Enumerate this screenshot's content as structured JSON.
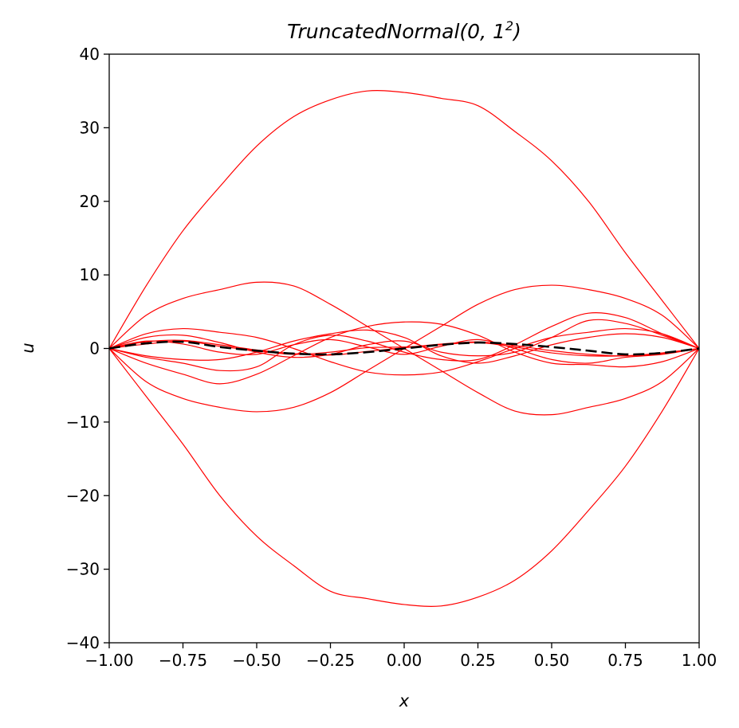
{
  "chart_data": {
    "type": "line",
    "title": "TruncatedNormal(0, 1",
    "title_superscript": "2",
    "title_close": ")",
    "xlabel": "x",
    "ylabel": "u",
    "xlim": [
      -1,
      1
    ],
    "ylim": [
      -40,
      40
    ],
    "xticks": [
      "−1.00",
      "−0.75",
      "−0.50",
      "−0.25",
      "0.00",
      "0.25",
      "0.50",
      "0.75",
      "1.00"
    ],
    "yticks": [
      "−40",
      "−30",
      "−20",
      "−10",
      "0",
      "10",
      "20",
      "30",
      "40"
    ],
    "grid": false,
    "x": [
      -1.0,
      -0.875,
      -0.75,
      -0.625,
      -0.5,
      -0.375,
      -0.25,
      -0.125,
      0.0,
      0.125,
      0.25,
      0.375,
      0.5,
      0.625,
      0.75,
      0.875,
      1.0
    ],
    "series": [
      {
        "color": "#ff0000",
        "values": [
          0,
          8.5,
          16.0,
          22.0,
          27.5,
          31.5,
          33.8,
          35.0,
          34.8,
          34.0,
          33.0,
          29.5,
          25.5,
          20.0,
          13.0,
          6.5,
          0
        ]
      },
      {
        "color": "#ff0000",
        "values": [
          0,
          -6.5,
          -13.0,
          -20.0,
          -25.5,
          -29.5,
          -33.0,
          -34.0,
          -34.8,
          -35.0,
          -33.8,
          -31.5,
          -27.5,
          -22.0,
          -16.0,
          -8.5,
          0
        ]
      },
      {
        "color": "#ff0000",
        "values": [
          0,
          4.5,
          6.8,
          8.0,
          9.0,
          8.5,
          6.0,
          3.0,
          0.0,
          -3.0,
          -6.0,
          -8.5,
          -9.0,
          -8.0,
          -6.8,
          -4.5,
          0
        ]
      },
      {
        "color": "#ff0000",
        "values": [
          0,
          -4.5,
          -6.8,
          -8.0,
          -8.6,
          -8.0,
          -6.0,
          -3.0,
          0.0,
          3.0,
          6.0,
          8.0,
          8.6,
          8.0,
          6.8,
          4.5,
          0
        ]
      },
      {
        "color": "#ff0000",
        "values": [
          0,
          2.0,
          2.7,
          2.2,
          1.5,
          0.0,
          -1.8,
          -3.2,
          -3.6,
          -3.2,
          -1.8,
          0.0,
          1.5,
          2.2,
          2.7,
          2.0,
          0
        ]
      },
      {
        "color": "#ff0000",
        "values": [
          0,
          -2.0,
          -3.5,
          -4.8,
          -3.5,
          -1.0,
          1.5,
          3.0,
          3.6,
          3.3,
          1.8,
          -0.5,
          -2.0,
          -2.2,
          -2.5,
          -1.8,
          0
        ]
      },
      {
        "color": "#ff0000",
        "values": [
          0,
          -1.2,
          -2.0,
          -3.0,
          -2.5,
          0.5,
          1.8,
          1.0,
          -0.5,
          -1.5,
          -1.5,
          0.5,
          3.0,
          4.8,
          4.2,
          2.0,
          0
        ]
      },
      {
        "color": "#ff0000",
        "values": [
          0,
          1.5,
          1.8,
          0.8,
          -0.5,
          -1.2,
          -0.8,
          0.5,
          1.0,
          -0.5,
          -1.0,
          -0.5,
          1.5,
          3.8,
          3.4,
          1.8,
          0
        ]
      },
      {
        "color": "#ff0000",
        "values": [
          0,
          -1.0,
          -1.5,
          -1.5,
          -0.5,
          1.0,
          2.0,
          2.5,
          1.5,
          -1.0,
          -2.0,
          -1.0,
          0.5,
          1.5,
          2.0,
          1.5,
          0
        ]
      },
      {
        "color": "#ff0000",
        "values": [
          0,
          1.0,
          0.6,
          -0.5,
          -0.8,
          0.5,
          1.2,
          0.2,
          -0.8,
          0.3,
          1.2,
          0.0,
          -1.5,
          -2.0,
          -1.2,
          -0.8,
          0
        ]
      },
      {
        "color": "#ff0000",
        "values": [
          0,
          0.6,
          1.0,
          0.3,
          -0.3,
          -0.8,
          -0.5,
          0.1,
          0.2,
          0.5,
          0.8,
          0.2,
          -0.6,
          -1.0,
          -1.0,
          -0.7,
          0
        ]
      },
      {
        "color": "#ff0000",
        "values": [
          0,
          0.9,
          1.1,
          0.5,
          -0.2,
          -0.7,
          -0.9,
          -0.4,
          0.1,
          0.6,
          0.9,
          0.4,
          -0.3,
          -0.8,
          -1.0,
          -0.6,
          0
        ]
      },
      {
        "color": "#000000",
        "dashed": true,
        "values": [
          0,
          0.7,
          0.9,
          0.2,
          -0.3,
          -0.7,
          -0.8,
          -0.5,
          0.0,
          0.5,
          0.8,
          0.6,
          0.2,
          -0.3,
          -0.8,
          -0.6,
          0
        ]
      }
    ]
  }
}
